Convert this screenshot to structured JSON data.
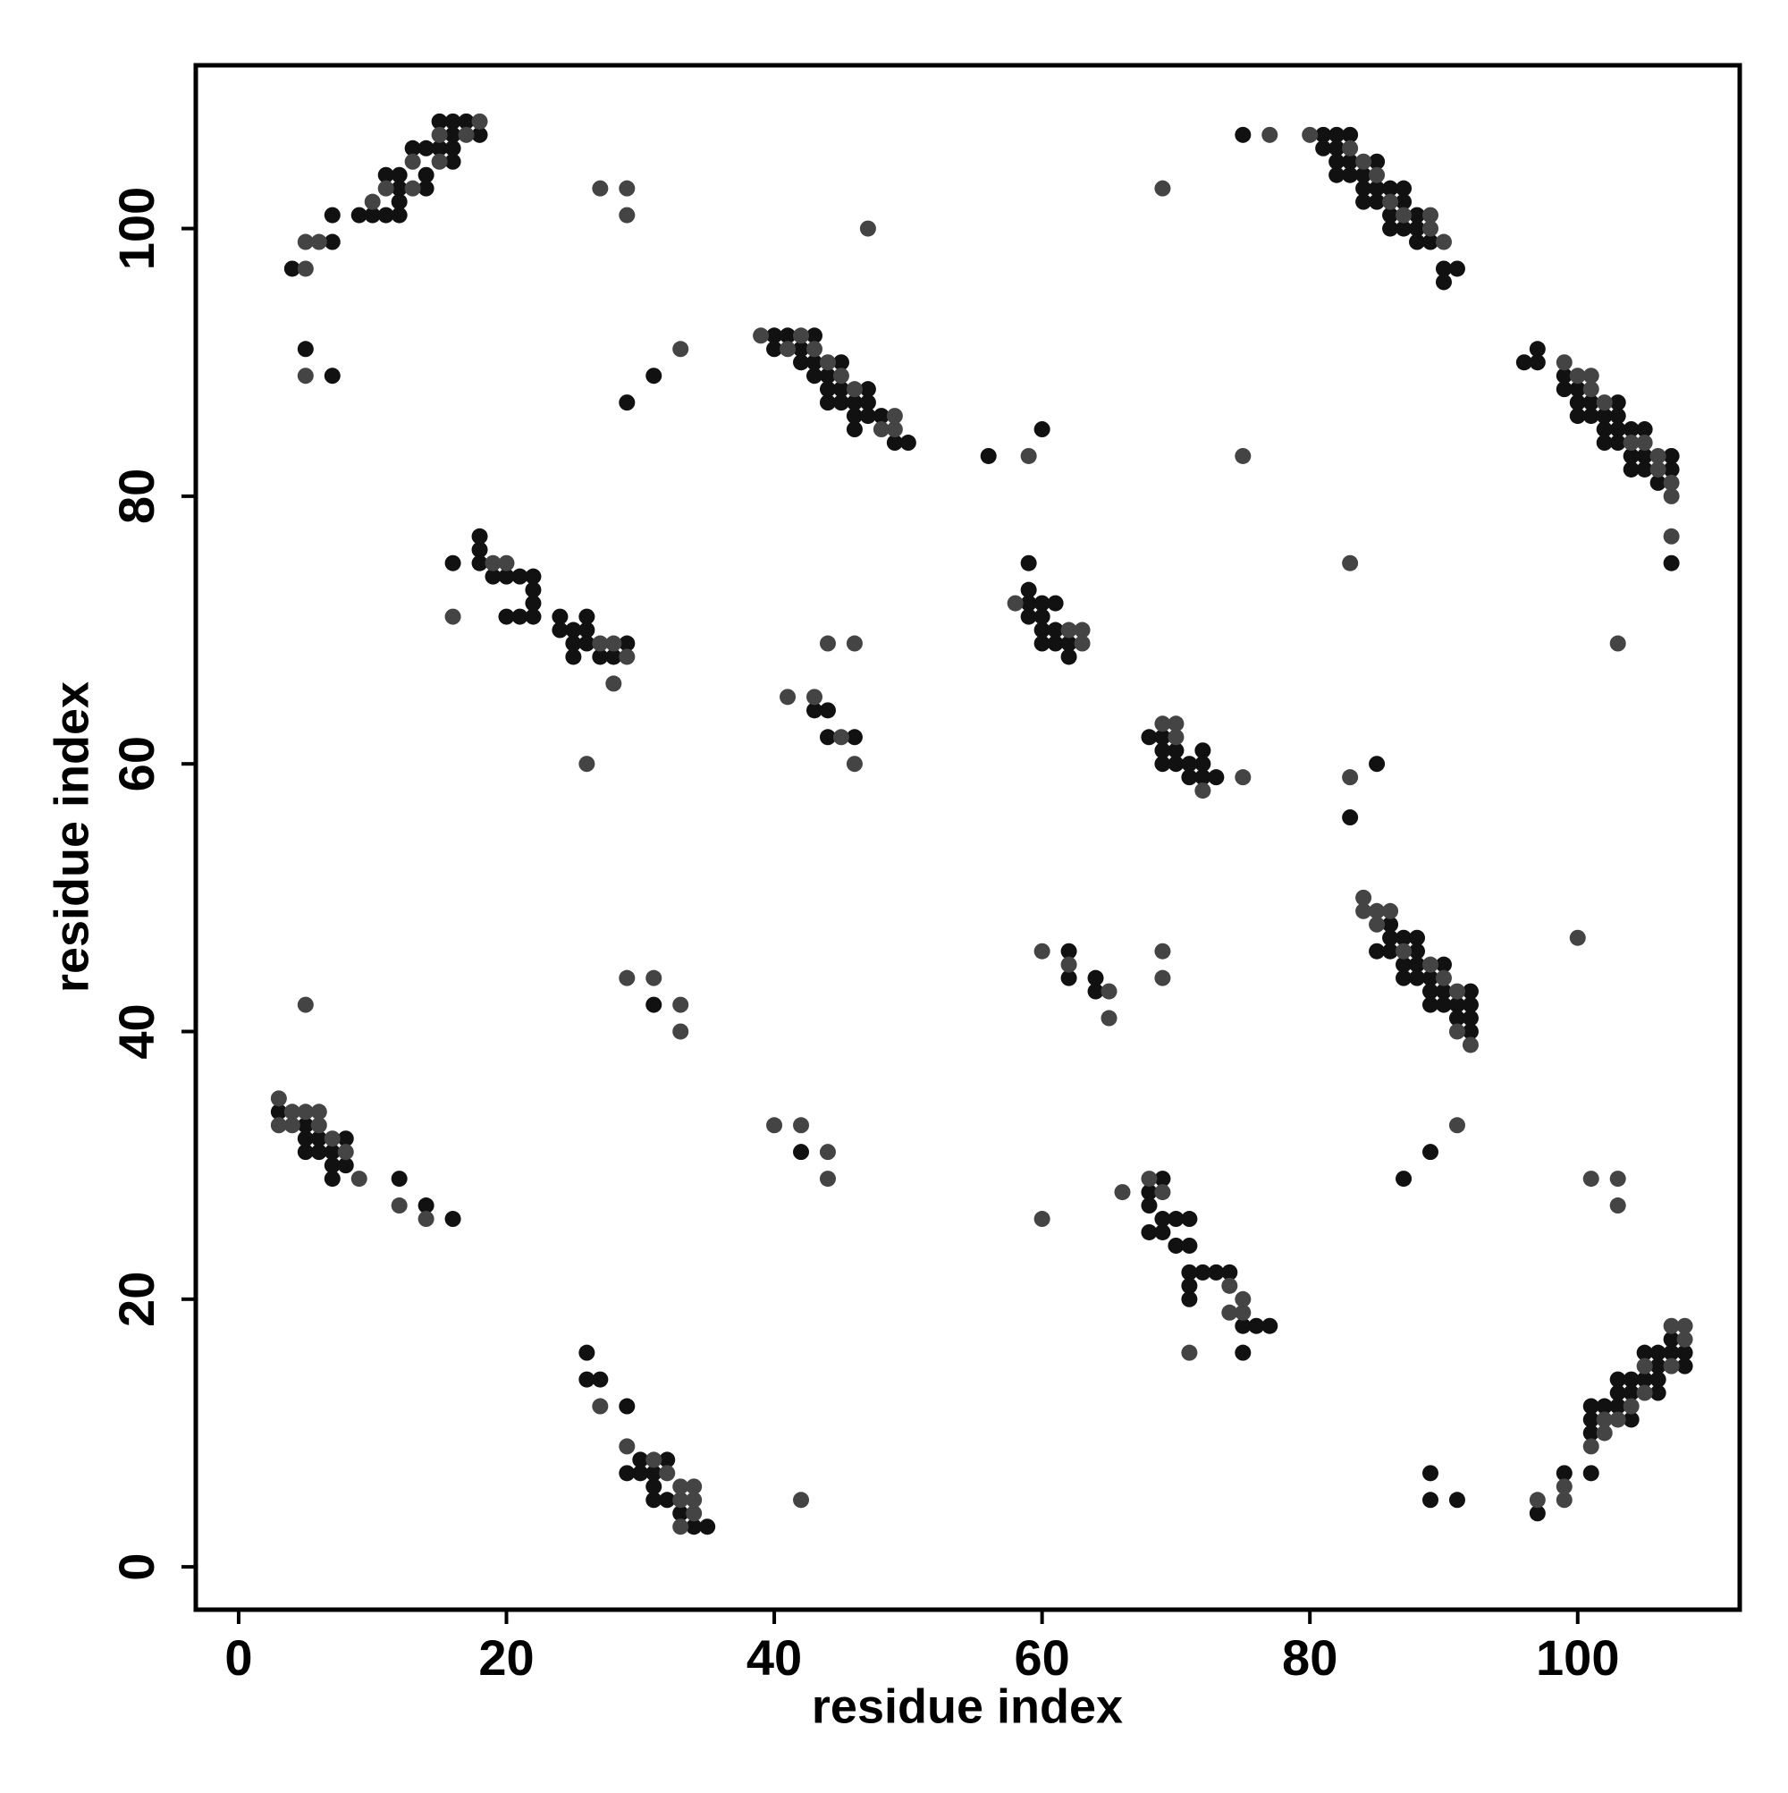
{
  "chart_data": {
    "type": "scatter",
    "x_label": "residue index",
    "y_label": "residue index",
    "xlim": [
      -3.2,
      112.1
    ],
    "ylim": [
      -3.2,
      112.2
    ],
    "xticks": [
      0,
      20,
      40,
      60,
      80,
      100
    ],
    "yticks": [
      0,
      20,
      40,
      60,
      80,
      100
    ],
    "grid": false,
    "series": [
      {
        "color": "#111111",
        "x": [
          4,
          7,
          7,
          9,
          10,
          11,
          11,
          12,
          12,
          12,
          12,
          13,
          14,
          14,
          14,
          15,
          15,
          16,
          16,
          16,
          16,
          17,
          18,
          5,
          7,
          31,
          29,
          40,
          40,
          41,
          42,
          42,
          43,
          43,
          43,
          44,
          44,
          44,
          45,
          45,
          45,
          46,
          46,
          46,
          47,
          47,
          47,
          48,
          49,
          50,
          56,
          60,
          75,
          81,
          81,
          82,
          82,
          82,
          82,
          83,
          83,
          83,
          84,
          84,
          84,
          85,
          85,
          85,
          86,
          86,
          86,
          87,
          87,
          87,
          88,
          88,
          88,
          89,
          90,
          90,
          91,
          96,
          97,
          97,
          99,
          99,
          100,
          100,
          100,
          101,
          101,
          102,
          102,
          102,
          103,
          103,
          103,
          103,
          104,
          104,
          104,
          105,
          105,
          105,
          106,
          107,
          107,
          107,
          16,
          18,
          18,
          18,
          19,
          20,
          20,
          21,
          21,
          22,
          22,
          22,
          22,
          24,
          24,
          25,
          25,
          25,
          26,
          26,
          26,
          27,
          28,
          29,
          43,
          44,
          44,
          46,
          59,
          59,
          59,
          59,
          60,
          60,
          60,
          60,
          61,
          61,
          61,
          62,
          62,
          68,
          69,
          69,
          69,
          70,
          70,
          71,
          71,
          72,
          72,
          72,
          73,
          83,
          85,
          85,
          86,
          86,
          86,
          87,
          87,
          87,
          88,
          88,
          88,
          88,
          89,
          89,
          89,
          90,
          90,
          90,
          91,
          91,
          92,
          92,
          92,
          92,
          62,
          62,
          64,
          64,
          31,
          3,
          5,
          5,
          5,
          6,
          6,
          7,
          7,
          7,
          8,
          8,
          12,
          14,
          16,
          42,
          68,
          68,
          68,
          69,
          69,
          69,
          70,
          70,
          71,
          71,
          71,
          71,
          71,
          72,
          73,
          74,
          75,
          76,
          77,
          75,
          87,
          89,
          26,
          26,
          27,
          29,
          29,
          30,
          30,
          31,
          31,
          31,
          32,
          32,
          33,
          34,
          35,
          89,
          89,
          91,
          97,
          99,
          101,
          101,
          101,
          101,
          102,
          103,
          103,
          103,
          104,
          104,
          104,
          105,
          105,
          106,
          106,
          106,
          106,
          107,
          107,
          108,
          108
        ],
        "y": [
          97,
          99,
          101,
          101,
          101,
          101,
          104,
          101,
          102,
          103,
          104,
          106,
          103,
          104,
          106,
          106,
          108,
          105,
          106,
          107,
          108,
          108,
          107,
          91,
          89,
          89,
          87,
          92,
          91,
          92,
          91,
          90,
          92,
          89,
          90,
          89,
          88,
          87,
          90,
          88,
          87,
          87,
          86,
          85,
          88,
          87,
          86,
          86,
          84,
          84,
          83,
          85,
          107,
          107,
          106,
          107,
          106,
          105,
          104,
          107,
          105,
          104,
          104,
          103,
          102,
          105,
          103,
          102,
          103,
          101,
          100,
          103,
          102,
          100,
          101,
          100,
          99,
          99,
          97,
          96,
          97,
          90,
          91,
          90,
          89,
          88,
          88,
          87,
          86,
          87,
          86,
          86,
          85,
          84,
          87,
          86,
          85,
          84,
          85,
          83,
          82,
          85,
          83,
          82,
          81,
          83,
          82,
          75,
          75,
          77,
          76,
          75,
          74,
          74,
          71,
          74,
          71,
          74,
          73,
          72,
          71,
          71,
          70,
          70,
          69,
          68,
          71,
          70,
          69,
          68,
          68,
          69,
          64,
          64,
          62,
          62,
          75,
          73,
          72,
          71,
          72,
          71,
          70,
          69,
          72,
          70,
          69,
          69,
          68,
          62,
          62,
          61,
          60,
          61,
          60,
          60,
          59,
          61,
          60,
          59,
          59,
          56,
          60,
          46,
          48,
          47,
          46,
          47,
          45,
          44,
          47,
          46,
          45,
          44,
          44,
          43,
          42,
          45,
          43,
          42,
          42,
          41,
          43,
          42,
          41,
          40,
          46,
          44,
          44,
          43,
          42,
          34,
          33,
          32,
          31,
          32,
          31,
          31,
          30,
          29,
          32,
          30,
          29,
          27,
          26,
          31,
          28,
          27,
          25,
          29,
          26,
          25,
          26,
          24,
          26,
          24,
          22,
          21,
          20,
          22,
          22,
          22,
          18,
          18,
          18,
          16,
          29,
          31,
          16,
          14,
          14,
          12,
          7,
          8,
          7,
          7,
          6,
          5,
          8,
          5,
          4,
          3,
          3,
          7,
          5,
          5,
          4,
          7,
          12,
          11,
          10,
          7,
          12,
          14,
          13,
          12,
          14,
          13,
          11,
          16,
          14,
          16,
          15,
          14,
          13,
          17,
          16,
          16,
          15
        ]
      },
      {
        "color": "#444444",
        "x": [
          5,
          5,
          6,
          10,
          11,
          13,
          13,
          15,
          15,
          17,
          18,
          27,
          29,
          29,
          47,
          5,
          33,
          39,
          41,
          42,
          43,
          44,
          45,
          46,
          48,
          49,
          49,
          59,
          75,
          77,
          80,
          83,
          84,
          85,
          86,
          87,
          89,
          89,
          90,
          69,
          99,
          100,
          101,
          101,
          102,
          104,
          105,
          106,
          106,
          107,
          107,
          107,
          16,
          19,
          20,
          27,
          28,
          28,
          29,
          26,
          41,
          43,
          44,
          45,
          46,
          46,
          58,
          62,
          63,
          63,
          69,
          70,
          70,
          72,
          75,
          83,
          83,
          103,
          84,
          84,
          85,
          85,
          86,
          87,
          89,
          90,
          91,
          91,
          92,
          100,
          60,
          62,
          65,
          65,
          69,
          69,
          5,
          29,
          31,
          33,
          33,
          3,
          3,
          4,
          4,
          5,
          6,
          6,
          7,
          8,
          9,
          12,
          14,
          40,
          42,
          44,
          44,
          60,
          66,
          68,
          69,
          74,
          74,
          75,
          75,
          71,
          91,
          101,
          103,
          103,
          27,
          29,
          31,
          32,
          33,
          33,
          33,
          34,
          34,
          34,
          42,
          97,
          99,
          99,
          101,
          102,
          102,
          103,
          104,
          105,
          105,
          107,
          107,
          108,
          108
        ],
        "y": [
          97,
          99,
          99,
          102,
          103,
          103,
          105,
          105,
          107,
          107,
          108,
          103,
          103,
          101,
          100,
          89,
          91,
          92,
          91,
          92,
          91,
          90,
          89,
          88,
          85,
          86,
          85,
          83,
          83,
          107,
          107,
          106,
          105,
          104,
          102,
          101,
          101,
          100,
          99,
          103,
          90,
          89,
          89,
          88,
          87,
          84,
          84,
          83,
          82,
          81,
          80,
          77,
          71,
          75,
          75,
          69,
          69,
          66,
          68,
          60,
          65,
          65,
          69,
          62,
          60,
          69,
          72,
          70,
          70,
          69,
          63,
          63,
          62,
          58,
          59,
          59,
          75,
          69,
          50,
          49,
          49,
          48,
          49,
          46,
          45,
          44,
          43,
          40,
          39,
          47,
          46,
          45,
          43,
          41,
          46,
          44,
          42,
          44,
          44,
          42,
          40,
          35,
          33,
          34,
          33,
          34,
          34,
          33,
          32,
          31,
          29,
          27,
          26,
          33,
          33,
          31,
          29,
          26,
          28,
          29,
          28,
          21,
          19,
          20,
          19,
          16,
          33,
          29,
          29,
          27,
          12,
          9,
          8,
          7,
          6,
          5,
          3,
          6,
          5,
          4,
          5,
          5,
          6,
          5,
          9,
          11,
          10,
          11,
          12,
          15,
          13,
          18,
          15,
          18,
          17
        ]
      }
    ]
  }
}
